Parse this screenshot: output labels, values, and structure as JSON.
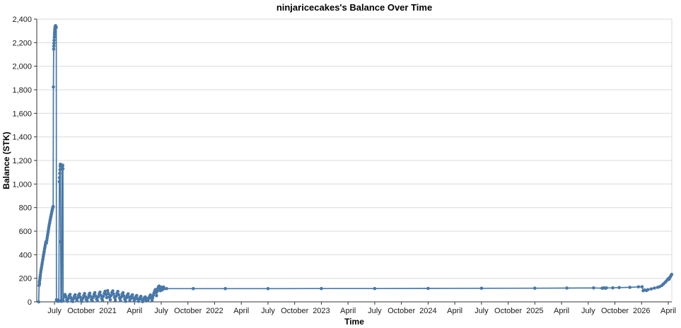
{
  "chart_data": {
    "type": "line",
    "title": "ninjaricecakes's Balance Over Time",
    "xlabel": "Time",
    "ylabel": "Balance (STK)",
    "legend_position": "none",
    "grid": "horizontal",
    "x_domain": [
      2020.334,
      2026.283
    ],
    "ylim": [
      0,
      2400
    ],
    "colors": {
      "line": "#4878a8",
      "marker": "#4878a8",
      "grid": "#d9d9d9",
      "axis": "#333333",
      "tick_text": "#1a1a1a"
    },
    "y_ticks": [
      {
        "value": 0,
        "label": "0"
      },
      {
        "value": 200,
        "label": "200"
      },
      {
        "value": 400,
        "label": "400"
      },
      {
        "value": 600,
        "label": "600"
      },
      {
        "value": 800,
        "label": "800"
      },
      {
        "value": 1000,
        "label": "1,000"
      },
      {
        "value": 1200,
        "label": "1,200"
      },
      {
        "value": 1400,
        "label": "1,400"
      },
      {
        "value": 1600,
        "label": "1,600"
      },
      {
        "value": 1800,
        "label": "1,800"
      },
      {
        "value": 2000,
        "label": "2,000"
      },
      {
        "value": 2200,
        "label": "2,200"
      },
      {
        "value": 2400,
        "label": "2,400"
      }
    ],
    "x_ticks": [
      {
        "t": 2020.5,
        "label": "July"
      },
      {
        "t": 2020.75,
        "label": "October"
      },
      {
        "t": 2021.0,
        "label": "2021"
      },
      {
        "t": 2021.25,
        "label": "April"
      },
      {
        "t": 2021.5,
        "label": "July"
      },
      {
        "t": 2021.75,
        "label": "October"
      },
      {
        "t": 2022.0,
        "label": "2022"
      },
      {
        "t": 2022.25,
        "label": "April"
      },
      {
        "t": 2022.5,
        "label": "July"
      },
      {
        "t": 2022.75,
        "label": "October"
      },
      {
        "t": 2023.0,
        "label": "2023"
      },
      {
        "t": 2023.25,
        "label": "April"
      },
      {
        "t": 2023.5,
        "label": "July"
      },
      {
        "t": 2023.75,
        "label": "October"
      },
      {
        "t": 2024.0,
        "label": "2024"
      },
      {
        "t": 2024.25,
        "label": "April"
      },
      {
        "t": 2024.5,
        "label": "July"
      },
      {
        "t": 2024.75,
        "label": "October"
      },
      {
        "t": 2025.0,
        "label": "2025"
      },
      {
        "t": 2025.25,
        "label": "April"
      },
      {
        "t": 2025.5,
        "label": "July"
      },
      {
        "t": 2025.75,
        "label": "October"
      },
      {
        "t": 2026.0,
        "label": "2026"
      },
      {
        "t": 2026.25,
        "label": "April"
      }
    ],
    "series": [
      {
        "name": "Balance (STK)",
        "points": [
          [
            2020.352,
            0
          ],
          [
            2020.356,
            140
          ],
          [
            2020.358,
            170
          ],
          [
            2020.36,
            155
          ],
          [
            2020.362,
            185
          ],
          [
            2020.364,
            200
          ],
          [
            2020.366,
            215
          ],
          [
            2020.368,
            230
          ],
          [
            2020.371,
            250
          ],
          [
            2020.374,
            268
          ],
          [
            2020.377,
            285
          ],
          [
            2020.38,
            300
          ],
          [
            2020.383,
            318
          ],
          [
            2020.386,
            335
          ],
          [
            2020.389,
            352
          ],
          [
            2020.392,
            368
          ],
          [
            2020.395,
            385
          ],
          [
            2020.398,
            400
          ],
          [
            2020.401,
            415
          ],
          [
            2020.404,
            430
          ],
          [
            2020.407,
            448
          ],
          [
            2020.41,
            462
          ],
          [
            2020.413,
            478
          ],
          [
            2020.416,
            492
          ],
          [
            2020.419,
            505
          ],
          [
            2020.422,
            512
          ],
          [
            2020.425,
            500
          ],
          [
            2020.428,
            520
          ],
          [
            2020.431,
            540
          ],
          [
            2020.434,
            558
          ],
          [
            2020.437,
            575
          ],
          [
            2020.44,
            592
          ],
          [
            2020.443,
            610
          ],
          [
            2020.446,
            628
          ],
          [
            2020.449,
            645
          ],
          [
            2020.452,
            660
          ],
          [
            2020.455,
            672
          ],
          [
            2020.458,
            688
          ],
          [
            2020.461,
            700
          ],
          [
            2020.464,
            715
          ],
          [
            2020.467,
            728
          ],
          [
            2020.47,
            742
          ],
          [
            2020.473,
            755
          ],
          [
            2020.476,
            768
          ],
          [
            2020.479,
            780
          ],
          [
            2020.482,
            792
          ],
          [
            2020.485,
            802
          ],
          [
            2020.488,
            810
          ],
          [
            2020.49,
            1824
          ],
          [
            2020.492,
            2145
          ],
          [
            2020.4935,
            2170
          ],
          [
            2020.495,
            2195
          ],
          [
            2020.4965,
            2220
          ],
          [
            2020.498,
            2245
          ],
          [
            2020.4995,
            2268
          ],
          [
            2020.501,
            2288
          ],
          [
            2020.5025,
            2305
          ],
          [
            2020.504,
            2318
          ],
          [
            2020.5055,
            2328
          ],
          [
            2020.507,
            2336
          ],
          [
            2020.5085,
            2341
          ],
          [
            2020.51,
            2344
          ],
          [
            2020.517,
            2330
          ],
          [
            2020.518,
            18
          ],
          [
            2020.521,
            8
          ],
          [
            2020.526,
            15
          ],
          [
            2020.531,
            5
          ],
          [
            2020.536,
            12
          ],
          [
            2020.541,
            6
          ],
          [
            2020.545,
            1020
          ],
          [
            2020.547,
            1055
          ],
          [
            2020.549,
            1090
          ],
          [
            2020.551,
            1122
          ],
          [
            2020.553,
            1150
          ],
          [
            2020.555,
            1168
          ],
          [
            2020.558,
            510
          ],
          [
            2020.56,
            10
          ],
          [
            2020.564,
            4
          ],
          [
            2020.568,
            14
          ],
          [
            2020.572,
            1128
          ],
          [
            2020.575,
            1152
          ],
          [
            2020.577,
            1160
          ],
          [
            2020.579,
            1130
          ],
          [
            2020.581,
            8
          ],
          [
            2020.59,
            40
          ],
          [
            2020.598,
            62
          ],
          [
            2020.606,
            45
          ],
          [
            2020.614,
            18
          ],
          [
            2020.622,
            5
          ],
          [
            2020.63,
            28
          ],
          [
            2020.638,
            52
          ],
          [
            2020.646,
            63
          ],
          [
            2020.654,
            36
          ],
          [
            2020.662,
            12
          ],
          [
            2020.67,
            3
          ],
          [
            2020.678,
            25
          ],
          [
            2020.686,
            47
          ],
          [
            2020.694,
            60
          ],
          [
            2020.702,
            33
          ],
          [
            2020.71,
            10
          ],
          [
            2020.718,
            35
          ],
          [
            2020.726,
            55
          ],
          [
            2020.734,
            68
          ],
          [
            2020.742,
            40
          ],
          [
            2020.75,
            15
          ],
          [
            2020.758,
            4
          ],
          [
            2020.766,
            30
          ],
          [
            2020.774,
            52
          ],
          [
            2020.782,
            70
          ],
          [
            2020.79,
            44
          ],
          [
            2020.798,
            18
          ],
          [
            2020.806,
            6
          ],
          [
            2020.814,
            34
          ],
          [
            2020.822,
            58
          ],
          [
            2020.83,
            73
          ],
          [
            2020.838,
            46
          ],
          [
            2020.846,
            20
          ],
          [
            2020.854,
            8
          ],
          [
            2020.862,
            38
          ],
          [
            2020.87,
            62
          ],
          [
            2020.878,
            78
          ],
          [
            2020.886,
            50
          ],
          [
            2020.894,
            24
          ],
          [
            2020.902,
            10
          ],
          [
            2020.91,
            42
          ],
          [
            2020.918,
            66
          ],
          [
            2020.926,
            82
          ],
          [
            2020.934,
            55
          ],
          [
            2020.942,
            28
          ],
          [
            2020.95,
            12
          ],
          [
            2020.958,
            46
          ],
          [
            2020.966,
            72
          ],
          [
            2020.974,
            90
          ],
          [
            2020.982,
            64
          ],
          [
            2020.99,
            36
          ],
          [
            2020.998,
            95
          ],
          [
            2021.006,
            70
          ],
          [
            2021.014,
            42
          ],
          [
            2021.022,
            18
          ],
          [
            2021.03,
            54
          ],
          [
            2021.038,
            80
          ],
          [
            2021.046,
            93
          ],
          [
            2021.054,
            66
          ],
          [
            2021.062,
            38
          ],
          [
            2021.07,
            15
          ],
          [
            2021.078,
            48
          ],
          [
            2021.086,
            74
          ],
          [
            2021.094,
            88
          ],
          [
            2021.102,
            60
          ],
          [
            2021.11,
            32
          ],
          [
            2021.118,
            10
          ],
          [
            2021.126,
            42
          ],
          [
            2021.134,
            66
          ],
          [
            2021.142,
            78
          ],
          [
            2021.15,
            50
          ],
          [
            2021.158,
            22
          ],
          [
            2021.166,
            4
          ],
          [
            2021.174,
            34
          ],
          [
            2021.182,
            56
          ],
          [
            2021.19,
            68
          ],
          [
            2021.198,
            40
          ],
          [
            2021.206,
            14
          ],
          [
            2021.214,
            30
          ],
          [
            2021.222,
            50
          ],
          [
            2021.23,
            60
          ],
          [
            2021.238,
            32
          ],
          [
            2021.246,
            8
          ],
          [
            2021.254,
            24
          ],
          [
            2021.262,
            44
          ],
          [
            2021.27,
            54
          ],
          [
            2021.278,
            26
          ],
          [
            2021.286,
            4
          ],
          [
            2021.294,
            20
          ],
          [
            2021.302,
            38
          ],
          [
            2021.31,
            46
          ],
          [
            2021.318,
            22
          ],
          [
            2021.326,
            2
          ],
          [
            2021.334,
            18
          ],
          [
            2021.342,
            34
          ],
          [
            2021.35,
            42
          ],
          [
            2021.358,
            16
          ],
          [
            2021.366,
            28
          ],
          [
            2021.374,
            12
          ],
          [
            2021.382,
            26
          ],
          [
            2021.39,
            44
          ],
          [
            2021.398,
            58
          ],
          [
            2021.406,
            36
          ],
          [
            2021.414,
            14
          ],
          [
            2021.42,
            34
          ],
          [
            2021.426,
            56
          ],
          [
            2021.432,
            74
          ],
          [
            2021.438,
            90
          ],
          [
            2021.444,
            104
          ],
          [
            2021.45,
            80
          ],
          [
            2021.456,
            52
          ],
          [
            2021.462,
            88
          ],
          [
            2021.468,
            112
          ],
          [
            2021.474,
            128
          ],
          [
            2021.48,
            134
          ],
          [
            2021.486,
            108
          ],
          [
            2021.492,
            94
          ],
          [
            2021.498,
            116
          ],
          [
            2021.504,
            124
          ],
          [
            2021.51,
            102
          ],
          [
            2021.516,
            118
          ],
          [
            2021.522,
            126
          ],
          [
            2021.528,
            112
          ],
          [
            2021.55,
            112
          ],
          [
            2021.8,
            112
          ],
          [
            2022.1,
            112
          ],
          [
            2022.5,
            112
          ],
          [
            2023.0,
            113
          ],
          [
            2023.5,
            113
          ],
          [
            2024.0,
            114
          ],
          [
            2024.5,
            115
          ],
          [
            2025.0,
            116
          ],
          [
            2025.3,
            117
          ],
          [
            2025.55,
            118
          ],
          [
            2025.63,
            116
          ],
          [
            2025.645,
            119
          ],
          [
            2025.66,
            115
          ],
          [
            2025.67,
            118
          ],
          [
            2025.73,
            119
          ],
          [
            2025.79,
            121
          ],
          [
            2025.89,
            123
          ],
          [
            2025.97,
            127
          ],
          [
            2026.005,
            128
          ],
          [
            2026.015,
            95
          ],
          [
            2026.03,
            101
          ],
          [
            2026.045,
            96
          ],
          [
            2026.06,
            104
          ],
          [
            2026.09,
            110
          ],
          [
            2026.12,
            117
          ],
          [
            2026.15,
            123
          ],
          [
            2026.17,
            129
          ],
          [
            2026.19,
            140
          ],
          [
            2026.205,
            152
          ],
          [
            2026.22,
            165
          ],
          [
            2026.232,
            177
          ],
          [
            2026.243,
            188
          ],
          [
            2026.252,
            198
          ],
          [
            2026.258,
            192
          ],
          [
            2026.264,
            205
          ],
          [
            2026.27,
            214
          ],
          [
            2026.276,
            224
          ],
          [
            2026.282,
            233
          ]
        ]
      }
    ]
  }
}
